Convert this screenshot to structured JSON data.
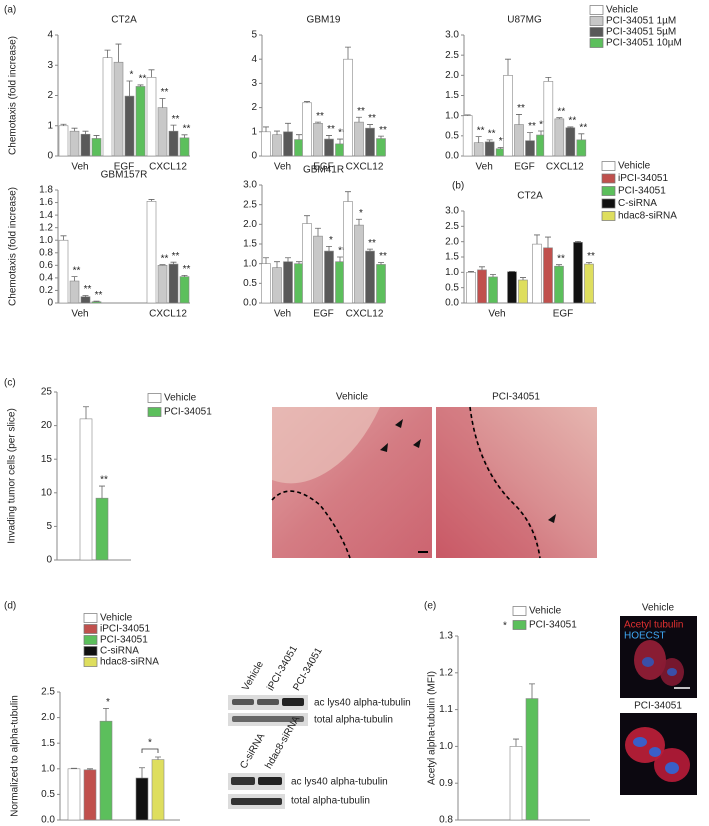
{
  "chart_data": [
    {
      "type": "bar",
      "panel_label": "(a)",
      "series": [
        {
          "name": "Vehicle",
          "color": "#ffffff"
        },
        {
          "name": "PCI-34051 1µM",
          "color": "#c8c8c8"
        },
        {
          "name": "PCI-34051 5µM",
          "color": "#595959"
        },
        {
          "name": "PCI-34051 10µM",
          "color": "#5cbf5c"
        }
      ],
      "subplots": [
        {
          "title": "CT2A",
          "ylabel": "Chemotaxis (fold increase)",
          "categories": [
            "Veh",
            "EGF",
            "CXCL12"
          ],
          "ylim": [
            0,
            4
          ],
          "yticks": [
            0,
            1,
            2,
            3,
            4
          ],
          "series": [
            {
              "values": [
                1.0,
                3.25,
                2.6
              ],
              "errors": [
                0.05,
                0.25,
                0.25
              ]
            },
            {
              "values": [
                0.82,
                3.1,
                1.6
              ],
              "errors": [
                0.1,
                0.6,
                0.3
              ],
              "labels": [
                null,
                null,
                "**"
              ]
            },
            {
              "values": [
                0.72,
                1.98,
                0.82
              ],
              "errors": [
                0.1,
                0.5,
                0.2
              ],
              "labels": [
                null,
                "*",
                "**"
              ]
            },
            {
              "values": [
                0.58,
                2.3,
                0.6
              ],
              "errors": [
                0.1,
                0.05,
                0.1
              ],
              "labels": [
                null,
                "**",
                "**"
              ]
            }
          ]
        },
        {
          "title": "GBM19",
          "categories": [
            "Veh",
            "EGF",
            "CXCL12"
          ],
          "ylim": [
            0,
            5
          ],
          "yticks": [
            0,
            1,
            2,
            3,
            4,
            5
          ],
          "series": [
            {
              "values": [
                1.0,
                2.2,
                4.0
              ],
              "errors": [
                0.2,
                0.05,
                0.5
              ]
            },
            {
              "values": [
                0.88,
                1.35,
                1.4
              ],
              "errors": [
                0.15,
                0.05,
                0.2
              ],
              "labels": [
                null,
                "**",
                "**"
              ]
            },
            {
              "values": [
                1.0,
                0.7,
                1.15
              ],
              "errors": [
                0.35,
                0.15,
                0.15
              ],
              "labels": [
                null,
                "**",
                "**"
              ]
            },
            {
              "values": [
                0.68,
                0.5,
                0.72
              ],
              "errors": [
                0.2,
                0.2,
                0.1
              ],
              "labels": [
                null,
                "**",
                "**"
              ]
            }
          ]
        },
        {
          "title": "U87MG",
          "categories": [
            "Veh",
            "EGF",
            "CXCL12"
          ],
          "ylim": [
            0,
            3
          ],
          "yticks": [
            {
              "value": 0,
              "label": "0.0"
            },
            0.5,
            {
              "value": 1,
              "label": "1.0"
            },
            1.5,
            {
              "value": 2,
              "label": "2.0"
            },
            2.5,
            {
              "value": 3,
              "label": "3.0"
            }
          ],
          "series": [
            {
              "values": [
                1.0,
                2.0,
                1.85
              ],
              "errors": [
                0.02,
                0.4,
                0.1
              ]
            },
            {
              "values": [
                0.33,
                0.78,
                0.92
              ],
              "errors": [
                0.15,
                0.25,
                0.03
              ],
              "labels": [
                "**",
                "**",
                "**"
              ]
            },
            {
              "values": [
                0.35,
                0.38,
                0.7
              ],
              "errors": [
                0.05,
                0.2,
                0.02
              ],
              "labels": [
                "**",
                "**",
                "**"
              ]
            },
            {
              "values": [
                0.18,
                0.52,
                0.4
              ],
              "errors": [
                0.03,
                0.1,
                0.15
              ],
              "labels": [
                "**",
                "**",
                "**"
              ]
            }
          ]
        },
        {
          "title": "GBM157R",
          "ylabel": "Chemotaxis (fold increase)",
          "categories": [
            "Veh",
            null,
            "CXCL12"
          ],
          "ylim": [
            0,
            1.8
          ],
          "yticks": [
            0,
            0.2,
            0.4,
            0.6,
            0.8,
            {
              "value": 1,
              "label": "1.0"
            },
            1.2,
            1.4,
            1.6,
            1.8
          ],
          "series": [
            {
              "values": [
                1.0,
                null,
                1.62
              ],
              "errors": [
                0.07,
                null,
                0.03
              ]
            },
            {
              "values": [
                0.35,
                null,
                0.6
              ],
              "errors": [
                0.07,
                null,
                0.01
              ],
              "labels": [
                "**",
                null,
                "**"
              ]
            },
            {
              "values": [
                0.1,
                null,
                0.62
              ],
              "errors": [
                0.02,
                null,
                0.03
              ],
              "labels": [
                "**",
                null,
                "**"
              ]
            },
            {
              "values": [
                0.02,
                null,
                0.42
              ],
              "errors": [
                0.01,
                null,
                0.02
              ],
              "labels": [
                "**",
                null,
                "**"
              ]
            }
          ]
        },
        {
          "title": "GBM41R",
          "categories": [
            "Veh",
            "EGF",
            "CXCL12"
          ],
          "ylim": [
            0,
            3
          ],
          "yticks": [
            {
              "value": 0,
              "label": "0.0"
            },
            0.5,
            {
              "value": 1,
              "label": "1.0"
            },
            1.5,
            {
              "value": 2,
              "label": "2.0"
            },
            2.5,
            {
              "value": 3,
              "label": "3.0"
            }
          ],
          "series": [
            {
              "values": [
                1.0,
                2.02,
                2.58
              ],
              "errors": [
                0.15,
                0.2,
                0.25
              ]
            },
            {
              "values": [
                0.9,
                1.7,
                1.98
              ],
              "errors": [
                0.15,
                0.2,
                0.15
              ],
              "labels": [
                null,
                null,
                "*"
              ]
            },
            {
              "values": [
                1.05,
                1.32,
                1.32
              ],
              "errors": [
                0.1,
                0.12,
                0.05
              ],
              "labels": [
                null,
                "*",
                "**"
              ]
            },
            {
              "values": [
                1.0,
                1.05,
                0.98
              ],
              "errors": [
                0.05,
                0.12,
                0.05
              ],
              "labels": [
                null,
                "**",
                "**"
              ]
            }
          ]
        }
      ]
    },
    {
      "type": "bar",
      "panel_label": "(b)",
      "series": [
        {
          "name": "Vehicle",
          "color": "#ffffff"
        },
        {
          "name": "iPCI-34051",
          "color": "#c0504d"
        },
        {
          "name": "PCI-34051",
          "color": "#5cbf5c"
        },
        {
          "name": "C-siRNA",
          "color": "#111111"
        },
        {
          "name": "hdac8-siRNA",
          "color": "#dede5e"
        }
      ],
      "subplots": [
        {
          "title": "CT2A",
          "categories": [
            "Veh",
            "EGF"
          ],
          "ylim": [
            0,
            3
          ],
          "yticks": [
            {
              "value": 0,
              "label": "0.0"
            },
            0.5,
            {
              "value": 1,
              "label": "1.0"
            },
            1.5,
            {
              "value": 2,
              "label": "2.0"
            },
            2.5,
            {
              "value": 3,
              "label": "3.0"
            }
          ],
          "series": [
            {
              "values": [
                1.0,
                1.92
              ],
              "errors": [
                0.03,
                0.3
              ]
            },
            {
              "values": [
                1.08,
                1.8
              ],
              "errors": [
                0.1,
                0.35
              ]
            },
            {
              "values": [
                0.85,
                1.2
              ],
              "errors": [
                0.08,
                0.05
              ],
              "labels": [
                null,
                "**"
              ]
            },
            {
              "values": [
                1.02,
                1.98
              ],
              "errors": [
                0.01,
                0.03
              ]
            },
            {
              "values": [
                0.75,
                1.27
              ],
              "errors": [
                0.08,
                0.05
              ],
              "labels": [
                null,
                "**"
              ]
            }
          ]
        }
      ]
    },
    {
      "type": "bar",
      "panel_label": "(c)",
      "series": [
        {
          "name": "Vehicle",
          "color": "#ffffff"
        },
        {
          "name": "PCI-34051",
          "color": "#5cbf5c"
        }
      ],
      "subplots": [
        {
          "ylabel": "Invading tumor cells (per slice)",
          "categories": [
            null
          ],
          "ylim": [
            0,
            25
          ],
          "yticks": [
            0,
            5,
            10,
            15,
            20,
            25
          ],
          "series": [
            {
              "values": [
                21.0
              ],
              "errors": [
                1.8
              ]
            },
            {
              "values": [
                9.2
              ],
              "errors": [
                1.8
              ],
              "labels": [
                "**"
              ]
            }
          ]
        }
      ],
      "image_labels": [
        "Vehicle",
        "PCI-34051"
      ]
    },
    {
      "type": "bar",
      "panel_label": "(d)",
      "series": [
        {
          "name": "Vehicle",
          "color": "#ffffff"
        },
        {
          "name": "iPCI-34051",
          "color": "#c0504d"
        },
        {
          "name": "PCI-34051",
          "color": "#5cbf5c"
        },
        {
          "name": "C-siRNA",
          "color": "#111111"
        },
        {
          "name": "hdac8-siRNA",
          "color": "#dede5e"
        }
      ],
      "subplots": [
        {
          "ylabel": "Normalized to alpha-tubulin",
          "categories": [
            null,
            null
          ],
          "ylim": [
            0,
            2.5
          ],
          "yticks": [
            {
              "value": 0,
              "label": "0.0"
            },
            0.5,
            {
              "value": 1,
              "label": "1.0"
            },
            1.5,
            {
              "value": 2,
              "label": "2.0"
            },
            2.5
          ],
          "series": [
            {
              "values": [
                1.0,
                null
              ],
              "errors": [
                0.01,
                null
              ]
            },
            {
              "values": [
                0.98,
                null
              ],
              "errors": [
                0.02,
                null
              ]
            },
            {
              "values": [
                1.93,
                null
              ],
              "errors": [
                0.25,
                null
              ],
              "labels": [
                "*",
                null
              ]
            },
            {
              "values": [
                null,
                0.82
              ],
              "errors": [
                null,
                0.2
              ]
            },
            {
              "values": [
                null,
                1.18
              ],
              "errors": [
                null,
                0.05
              ]
            }
          ],
          "bracket_label": "*"
        }
      ],
      "blots": [
        {
          "lanes": [
            "Vehicle",
            "iPCI-34051",
            "PCI-34051"
          ],
          "bands": [
            "ac lys40 alpha-tubulin",
            "total alpha-tubulin"
          ]
        },
        {
          "lanes": [
            "C-siRNA",
            "hdac8-siRNA"
          ],
          "bands": [
            "ac lys40 alpha-tubulin",
            "total alpha-tubulin"
          ]
        }
      ]
    },
    {
      "type": "bar",
      "panel_label": "(e)",
      "series": [
        {
          "name": "Vehicle",
          "color": "#ffffff"
        },
        {
          "name": "PCI-34051",
          "color": "#5cbf5c"
        }
      ],
      "subplots": [
        {
          "ylabel": "Acetyl alpha-tubulin (MFI)",
          "categories": [
            null
          ],
          "ylim": [
            0.8,
            1.3
          ],
          "yticks": [
            0.8,
            0.9,
            {
              "value": 1,
              "label": "1.0"
            },
            1.1,
            1.2,
            1.3
          ],
          "series": [
            {
              "values": [
                1.0
              ],
              "errors": [
                0.02
              ]
            },
            {
              "values": [
                1.13
              ],
              "errors": [
                0.04
              ],
              "labels": [
                "*"
              ]
            }
          ]
        }
      ],
      "images": [
        {
          "title": "Vehicle",
          "stains": [
            "Acetyl tubulin",
            "HOECST"
          ]
        },
        {
          "title": "PCI-34051"
        }
      ]
    }
  ]
}
